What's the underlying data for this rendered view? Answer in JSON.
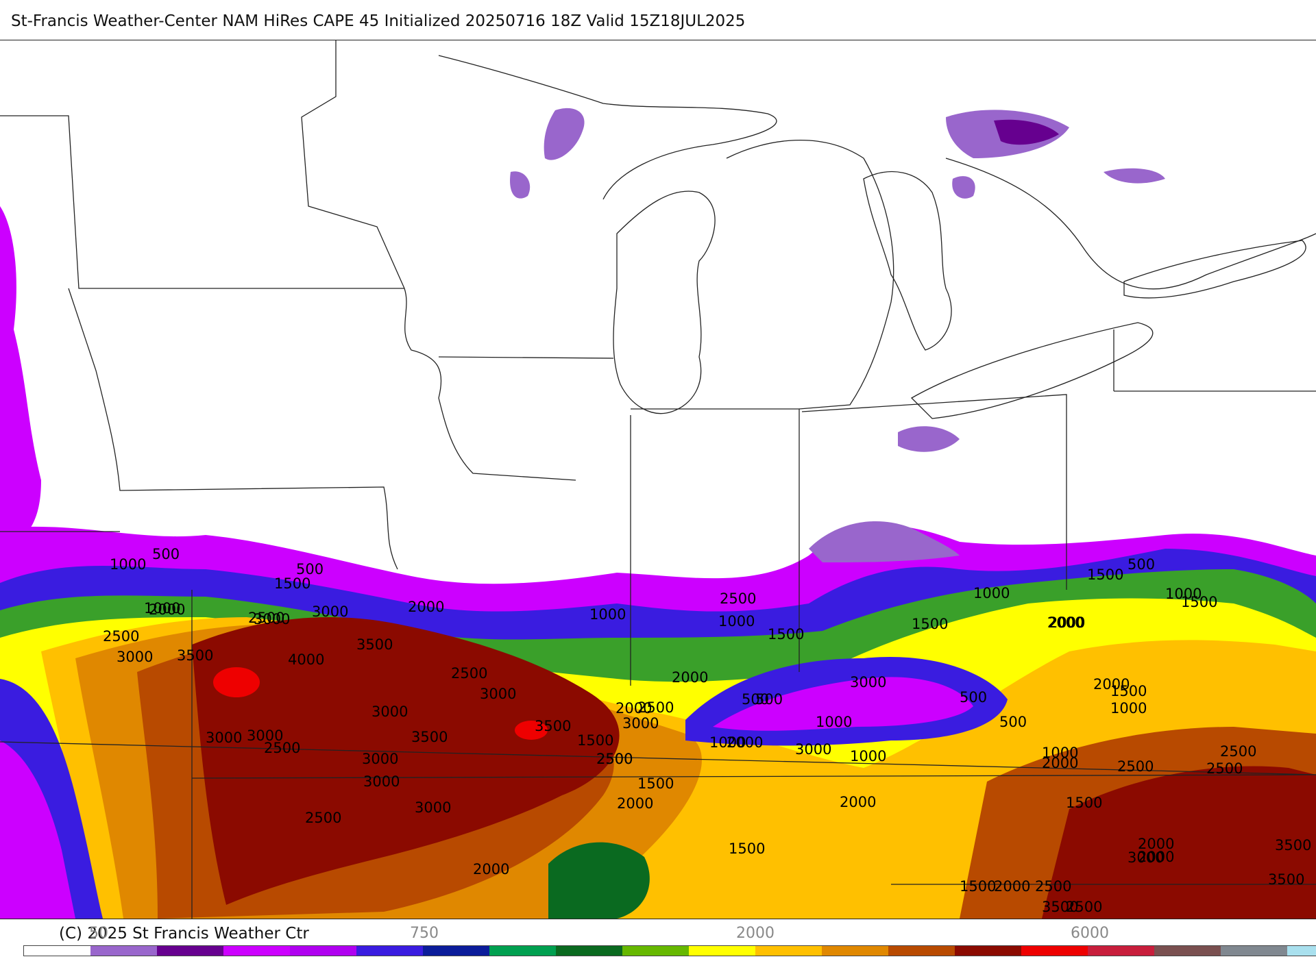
{
  "header": {
    "title": "St-Francis Weather-Center NAM HiRes CAPE  45 Initialized 20250716 18Z Valid 15Z18JUL2025"
  },
  "footer": {
    "copyright": "(C) 2025 St Francis Weather Ctr",
    "scale_ticks": [
      "50",
      "750",
      "2000",
      "6000"
    ]
  },
  "colorbar": {
    "colors": [
      "#ffffff",
      "#9966cc",
      "#66008f",
      "#cc00ff",
      "#b000f0",
      "#3a1ce0",
      "#0b1c9a",
      "#00a050",
      "#0a6a20",
      "#66b800",
      "#ffff00",
      "#ffc000",
      "#e08800",
      "#b84a00",
      "#8b0a00",
      "#ee0000",
      "#c81e3c",
      "#7a5050",
      "#808890",
      "#a9e0ee"
    ]
  },
  "map": {
    "palette": {
      "purple_light": "#9966cc",
      "purple_dark": "#66008f",
      "magenta": "#cc00ff",
      "blue": "#3a1ce0",
      "navy": "#0b1c9a",
      "green_dark": "#0a6a20",
      "green": "#3aa02a",
      "yellow_green": "#a8d400",
      "yellow": "#ffff00",
      "gold": "#ffc000",
      "orange": "#e08800",
      "brown": "#b84a00",
      "dark_red": "#8b0a00",
      "red": "#ee0000"
    },
    "contour_labels": [
      "1000",
      "500",
      "1000",
      "1500",
      "500",
      "2000",
      "2500",
      "3000",
      "3000",
      "3500",
      "4000",
      "2000",
      "2500",
      "3000",
      "3500",
      "2500",
      "3000",
      "3000",
      "1500",
      "1000",
      "2000",
      "500",
      "1000",
      "1500",
      "1000",
      "500",
      "1500",
      "2000",
      "1500",
      "1000",
      "2000",
      "2500",
      "3000",
      "3500",
      "3000",
      "2500",
      "3000",
      "2500",
      "3000",
      "3500",
      "3000",
      "2000",
      "2500",
      "2000",
      "1500",
      "1000",
      "2500",
      "3000",
      "3000",
      "2500",
      "2000",
      "2000",
      "1500",
      "2000",
      "1500",
      "1000",
      "1500",
      "2000",
      "500",
      "1000",
      "1500",
      "500",
      "2000",
      "1000",
      "2000",
      "2500",
      "1500",
      "2000",
      "2000",
      "2500",
      "2500",
      "3000",
      "3500",
      "3500",
      "2500",
      "2000",
      "2500",
      "3500",
      "1000",
      "500",
      "3000"
    ]
  }
}
